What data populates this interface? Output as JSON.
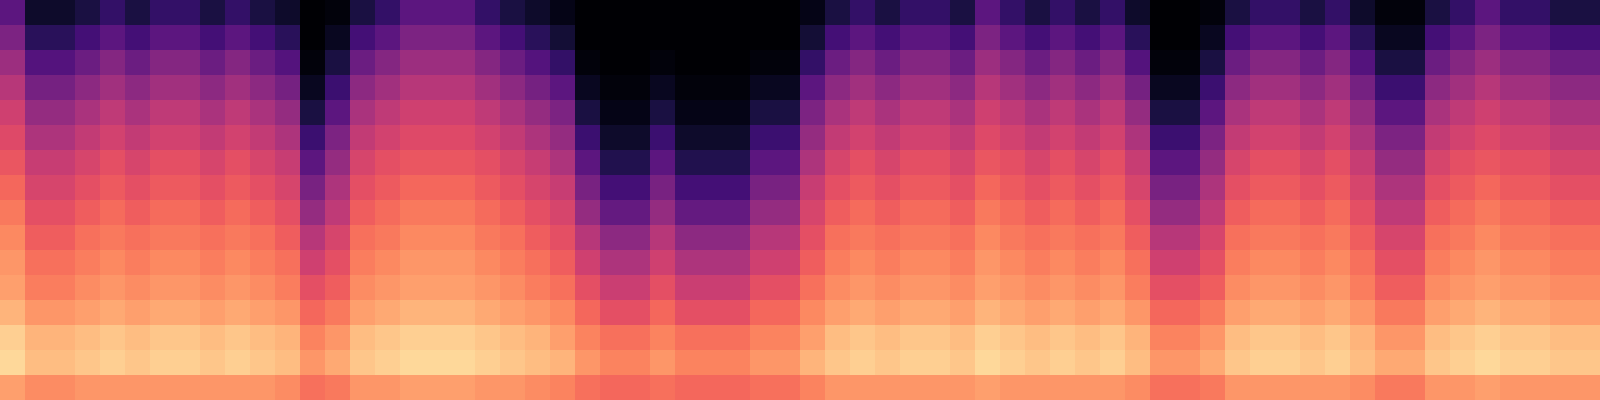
{
  "chart_data": {
    "type": "heatmap",
    "color": "magma",
    "tick_labels": false,
    "zlim": [
      0,
      100
    ],
    "cells": [
      [
        28,
        8,
        8,
        12,
        18,
        12,
        18,
        18,
        12,
        18,
        12,
        8,
        0,
        2,
        12,
        18,
        28,
        28,
        28,
        18,
        12,
        8,
        4,
        0,
        0,
        0,
        0,
        0,
        0,
        0,
        0,
        0,
        4,
        12,
        18,
        12,
        18,
        18,
        12,
        28,
        18,
        12,
        18,
        12,
        18,
        8,
        0,
        0,
        2,
        12,
        18,
        18,
        12,
        18,
        8,
        2,
        2,
        12,
        18,
        28,
        18,
        18,
        12,
        12
      ],
      [
        36,
        16,
        16,
        22,
        28,
        22,
        28,
        28,
        22,
        28,
        22,
        16,
        0,
        6,
        22,
        28,
        36,
        36,
        36,
        28,
        22,
        16,
        10,
        0,
        0,
        0,
        0,
        0,
        0,
        0,
        0,
        0,
        10,
        22,
        28,
        22,
        28,
        28,
        22,
        36,
        28,
        22,
        28,
        22,
        28,
        16,
        0,
        0,
        6,
        22,
        28,
        28,
        22,
        28,
        16,
        6,
        6,
        22,
        28,
        36,
        28,
        28,
        22,
        22
      ],
      [
        44,
        26,
        26,
        32,
        38,
        32,
        38,
        38,
        32,
        38,
        32,
        26,
        2,
        12,
        32,
        38,
        44,
        44,
        44,
        38,
        32,
        26,
        18,
        2,
        0,
        0,
        2,
        0,
        0,
        0,
        2,
        2,
        18,
        32,
        38,
        32,
        38,
        38,
        32,
        44,
        38,
        32,
        38,
        32,
        38,
        26,
        2,
        2,
        12,
        32,
        38,
        38,
        32,
        38,
        26,
        12,
        12,
        32,
        38,
        44,
        38,
        38,
        32,
        32
      ],
      [
        50,
        34,
        34,
        40,
        45,
        40,
        45,
        45,
        40,
        45,
        40,
        34,
        6,
        20,
        40,
        45,
        50,
        50,
        50,
        45,
        40,
        34,
        28,
        6,
        2,
        2,
        6,
        2,
        2,
        2,
        6,
        6,
        28,
        40,
        45,
        40,
        45,
        45,
        40,
        50,
        45,
        40,
        45,
        40,
        45,
        34,
        6,
        6,
        20,
        40,
        45,
        45,
        40,
        45,
        34,
        20,
        20,
        40,
        45,
        50,
        45,
        45,
        40,
        40
      ],
      [
        56,
        42,
        42,
        47,
        52,
        47,
        52,
        52,
        47,
        52,
        47,
        42,
        12,
        28,
        47,
        52,
        56,
        56,
        56,
        52,
        47,
        42,
        36,
        12,
        4,
        4,
        12,
        4,
        4,
        4,
        12,
        12,
        36,
        47,
        52,
        47,
        52,
        52,
        47,
        56,
        52,
        47,
        52,
        47,
        52,
        42,
        12,
        12,
        28,
        47,
        52,
        52,
        47,
        52,
        42,
        28,
        28,
        47,
        52,
        56,
        52,
        52,
        47,
        47
      ],
      [
        60,
        48,
        48,
        53,
        57,
        53,
        57,
        57,
        53,
        57,
        53,
        48,
        20,
        36,
        53,
        57,
        60,
        60,
        60,
        57,
        53,
        48,
        42,
        20,
        8,
        8,
        20,
        8,
        8,
        8,
        20,
        20,
        42,
        53,
        57,
        53,
        57,
        57,
        53,
        60,
        57,
        53,
        57,
        53,
        57,
        48,
        20,
        20,
        36,
        53,
        57,
        57,
        53,
        57,
        48,
        36,
        36,
        53,
        57,
        60,
        57,
        57,
        53,
        53
      ],
      [
        64,
        54,
        54,
        58,
        62,
        58,
        62,
        62,
        58,
        62,
        58,
        54,
        28,
        42,
        58,
        62,
        64,
        64,
        64,
        62,
        58,
        54,
        48,
        28,
        14,
        14,
        28,
        14,
        14,
        14,
        28,
        28,
        48,
        58,
        62,
        58,
        62,
        62,
        58,
        64,
        62,
        58,
        62,
        58,
        62,
        54,
        28,
        28,
        42,
        58,
        62,
        62,
        58,
        62,
        54,
        42,
        42,
        58,
        62,
        64,
        62,
        62,
        58,
        58
      ],
      [
        68,
        58,
        58,
        62,
        65,
        62,
        65,
        65,
        62,
        65,
        62,
        58,
        35,
        48,
        62,
        65,
        68,
        68,
        68,
        65,
        62,
        58,
        54,
        35,
        22,
        22,
        35,
        22,
        22,
        22,
        35,
        35,
        54,
        62,
        65,
        62,
        65,
        65,
        62,
        68,
        65,
        62,
        65,
        62,
        65,
        58,
        35,
        35,
        48,
        62,
        65,
        65,
        62,
        65,
        58,
        48,
        48,
        62,
        65,
        68,
        65,
        65,
        62,
        62
      ],
      [
        72,
        62,
        62,
        66,
        69,
        66,
        69,
        69,
        66,
        69,
        66,
        62,
        42,
        52,
        66,
        69,
        72,
        72,
        72,
        69,
        66,
        62,
        58,
        42,
        30,
        30,
        42,
        30,
        30,
        30,
        42,
        42,
        58,
        66,
        69,
        66,
        69,
        69,
        66,
        72,
        69,
        66,
        69,
        66,
        69,
        62,
        42,
        42,
        52,
        66,
        69,
        69,
        66,
        69,
        62,
        52,
        52,
        66,
        69,
        72,
        69,
        69,
        66,
        66
      ],
      [
        75,
        66,
        66,
        70,
        72,
        70,
        72,
        72,
        70,
        72,
        70,
        66,
        50,
        58,
        70,
        72,
        75,
        75,
        75,
        72,
        70,
        66,
        62,
        50,
        40,
        40,
        50,
        40,
        40,
        40,
        50,
        50,
        62,
        70,
        72,
        70,
        72,
        72,
        70,
        75,
        72,
        70,
        72,
        70,
        72,
        66,
        50,
        50,
        58,
        70,
        72,
        72,
        70,
        72,
        66,
        58,
        58,
        70,
        72,
        75,
        72,
        72,
        70,
        70
      ],
      [
        78,
        70,
        70,
        73,
        75,
        73,
        75,
        75,
        73,
        75,
        73,
        70,
        56,
        62,
        73,
        75,
        78,
        78,
        78,
        75,
        73,
        70,
        66,
        56,
        48,
        48,
        56,
        48,
        48,
        48,
        56,
        56,
        66,
        73,
        75,
        73,
        75,
        75,
        73,
        78,
        75,
        73,
        75,
        73,
        75,
        70,
        56,
        56,
        62,
        73,
        75,
        75,
        73,
        75,
        70,
        62,
        62,
        73,
        75,
        78,
        75,
        75,
        73,
        73
      ],
      [
        80,
        73,
        73,
        76,
        78,
        76,
        78,
        78,
        76,
        78,
        76,
        73,
        62,
        66,
        76,
        78,
        80,
        80,
        80,
        78,
        76,
        73,
        70,
        62,
        55,
        55,
        62,
        55,
        55,
        55,
        62,
        62,
        70,
        76,
        78,
        76,
        78,
        78,
        76,
        80,
        78,
        76,
        78,
        76,
        78,
        73,
        62,
        62,
        66,
        76,
        78,
        78,
        76,
        78,
        73,
        66,
        66,
        76,
        78,
        80,
        78,
        78,
        76,
        76
      ],
      [
        84,
        78,
        78,
        80,
        82,
        80,
        82,
        82,
        80,
        82,
        80,
        78,
        68,
        72,
        80,
        82,
        84,
        84,
        84,
        82,
        80,
        78,
        75,
        68,
        62,
        62,
        68,
        62,
        62,
        62,
        68,
        68,
        75,
        80,
        82,
        80,
        82,
        82,
        80,
        84,
        82,
        80,
        82,
        80,
        82,
        78,
        68,
        68,
        72,
        80,
        82,
        82,
        80,
        82,
        78,
        72,
        72,
        80,
        82,
        84,
        82,
        82,
        80,
        80
      ],
      [
        90,
        84,
        84,
        86,
        88,
        86,
        88,
        88,
        86,
        88,
        86,
        84,
        74,
        78,
        86,
        88,
        90,
        90,
        90,
        88,
        86,
        84,
        80,
        74,
        70,
        70,
        74,
        70,
        70,
        70,
        74,
        74,
        80,
        86,
        88,
        86,
        88,
        88,
        86,
        90,
        88,
        86,
        88,
        86,
        88,
        84,
        74,
        74,
        78,
        86,
        88,
        88,
        86,
        88,
        84,
        78,
        78,
        86,
        88,
        90,
        88,
        88,
        86,
        86
      ],
      [
        92,
        86,
        86,
        88,
        90,
        88,
        90,
        90,
        88,
        90,
        88,
        86,
        78,
        82,
        88,
        90,
        92,
        92,
        92,
        90,
        88,
        86,
        84,
        78,
        74,
        74,
        78,
        74,
        74,
        74,
        78,
        78,
        84,
        88,
        90,
        88,
        90,
        90,
        88,
        92,
        90,
        88,
        90,
        88,
        90,
        86,
        78,
        78,
        82,
        88,
        90,
        90,
        88,
        90,
        86,
        82,
        82,
        88,
        90,
        92,
        90,
        90,
        88,
        88
      ],
      [
        80,
        76,
        76,
        78,
        78,
        78,
        78,
        78,
        78,
        78,
        78,
        76,
        70,
        72,
        78,
        78,
        80,
        80,
        80,
        78,
        78,
        76,
        74,
        70,
        68,
        68,
        70,
        68,
        68,
        68,
        70,
        70,
        74,
        78,
        78,
        78,
        78,
        78,
        78,
        80,
        78,
        78,
        78,
        78,
        78,
        76,
        70,
        70,
        72,
        78,
        78,
        78,
        78,
        78,
        76,
        72,
        72,
        78,
        78,
        80,
        78,
        78,
        78,
        78
      ]
    ]
  }
}
